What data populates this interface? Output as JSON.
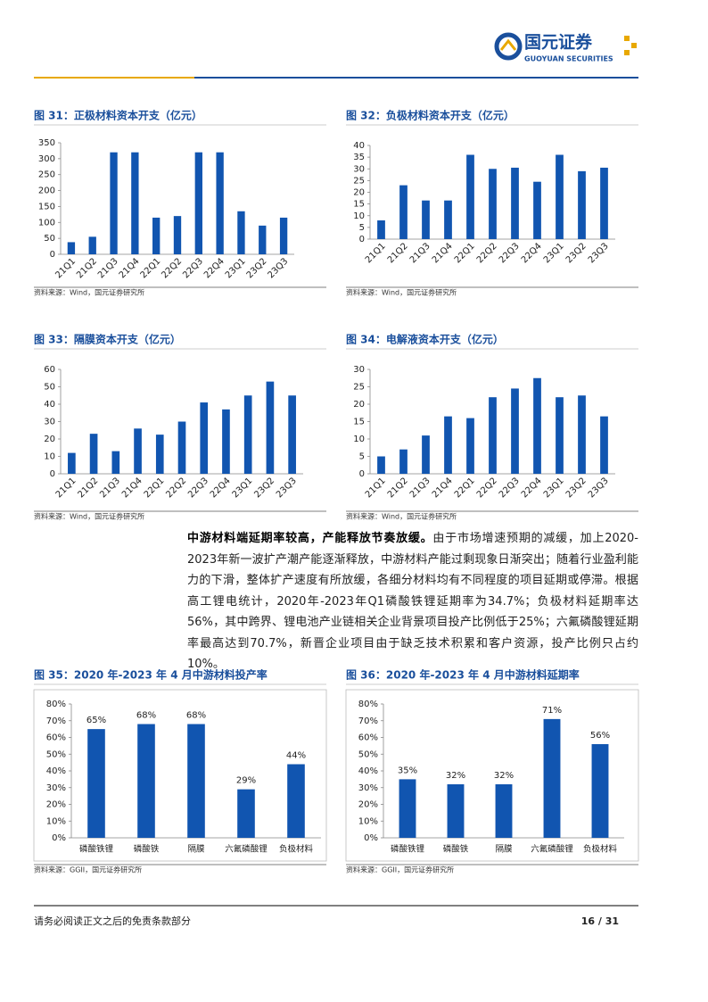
{
  "header": {
    "logo_cn": "国元证券",
    "logo_en": "GUOYUAN SECURITIES"
  },
  "chart_data": [
    {
      "type": "bar",
      "title": "图 31：正极材料资本开支（亿元）",
      "source": "资料来源：Wind，国元证券研究所",
      "categories": [
        "21Q1",
        "21Q2",
        "21Q3",
        "21Q4",
        "22Q1",
        "22Q2",
        "22Q3",
        "22Q4",
        "23Q1",
        "23Q2",
        "23Q3"
      ],
      "values": [
        38,
        55,
        320,
        320,
        115,
        120,
        320,
        320,
        135,
        90,
        115
      ],
      "color": "#1155b0",
      "ylim": [
        0,
        350
      ],
      "yticks": [
        0,
        50,
        100,
        150,
        200,
        250,
        300,
        350
      ]
    },
    {
      "type": "bar",
      "title": "图 32：负极材料资本开支（亿元）",
      "source": "资料来源：Wind，国元证券研究所",
      "categories": [
        "21Q1",
        "21Q2",
        "21Q3",
        "21Q4",
        "22Q1",
        "22Q2",
        "22Q3",
        "22Q4",
        "23Q1",
        "23Q2",
        "23Q3"
      ],
      "values": [
        8,
        23,
        16.5,
        16.5,
        36,
        30,
        30.5,
        24.5,
        36,
        29,
        30.5
      ],
      "color": "#1155b0",
      "ylim": [
        0,
        40
      ],
      "yticks": [
        0,
        5,
        10,
        15,
        20,
        25,
        30,
        35,
        40
      ]
    },
    {
      "type": "bar",
      "title": "图 33：隔膜资本开支（亿元）",
      "source": "资料来源：Wind，国元证券研究所",
      "categories": [
        "21Q1",
        "21Q2",
        "21Q3",
        "21Q4",
        "22Q1",
        "22Q2",
        "22Q3",
        "22Q4",
        "23Q1",
        "23Q2",
        "23Q3"
      ],
      "values": [
        12,
        23,
        13,
        26,
        22.5,
        30,
        41,
        37,
        45,
        53,
        45
      ],
      "color": "#1155b0",
      "ylim": [
        0,
        60
      ],
      "yticks": [
        0,
        10,
        20,
        30,
        40,
        50,
        60
      ]
    },
    {
      "type": "bar",
      "title": "图 34：电解液资本开支（亿元）",
      "source": "资料来源：Wind，国元证券研究所",
      "categories": [
        "21Q1",
        "21Q2",
        "21Q3",
        "21Q4",
        "22Q1",
        "22Q2",
        "22Q3",
        "22Q4",
        "23Q1",
        "23Q2",
        "23Q3"
      ],
      "values": [
        5,
        7,
        11,
        16.5,
        16,
        22,
        24.5,
        27.5,
        22,
        22.5,
        16.5
      ],
      "color": "#1155b0",
      "ylim": [
        0,
        30
      ],
      "yticks": [
        0,
        5,
        10,
        15,
        20,
        25,
        30
      ]
    },
    {
      "type": "bar",
      "title": "图 35：2020 年-2023 年 4 月中游材料投产率",
      "source": "资料来源：GGII，国元证券研究所",
      "categories": [
        "磷酸铁锂",
        "磷酸铁",
        "隔膜",
        "六氟磷酸锂",
        "负极材料"
      ],
      "values": [
        65,
        68,
        68,
        29,
        44
      ],
      "value_labels": [
        "65%",
        "68%",
        "68%",
        "29%",
        "44%"
      ],
      "color": "#1155b0",
      "ylim": [
        0,
        80
      ],
      "yticks": [
        {
          "value": 0,
          "label": "0%"
        },
        {
          "value": 10,
          "label": "10%"
        },
        {
          "value": 20,
          "label": "20%"
        },
        {
          "value": 30,
          "label": "30%"
        },
        {
          "value": 40,
          "label": "40%"
        },
        {
          "value": 50,
          "label": "50%"
        },
        {
          "value": 60,
          "label": "60%"
        },
        {
          "value": 70,
          "label": "70%"
        },
        {
          "value": 80,
          "label": "80%"
        }
      ]
    },
    {
      "type": "bar",
      "title": "图 36：2020 年-2023 年 4 月中游材料延期率",
      "source": "资料来源：GGII，国元证券研究所",
      "categories": [
        "磷酸铁锂",
        "磷酸铁",
        "隔膜",
        "六氟磷酸锂",
        "负极材料"
      ],
      "values": [
        35,
        32,
        32,
        71,
        56
      ],
      "value_labels": [
        "35%",
        "32%",
        "32%",
        "71%",
        "56%"
      ],
      "color": "#1155b0",
      "ylim": [
        0,
        80
      ],
      "yticks": [
        {
          "value": 0,
          "label": "0%"
        },
        {
          "value": 10,
          "label": "10%"
        },
        {
          "value": 20,
          "label": "20%"
        },
        {
          "value": 30,
          "label": "30%"
        },
        {
          "value": 40,
          "label": "40%"
        },
        {
          "value": 50,
          "label": "50%"
        },
        {
          "value": 60,
          "label": "60%"
        },
        {
          "value": 70,
          "label": "70%"
        },
        {
          "value": 80,
          "label": "80%"
        }
      ]
    }
  ],
  "paragraph": {
    "lead": "中游材料端延期率较高，产能释放节奏放缓。",
    "text": "由于市场增速预期的减缓，加上2020-2023年新一波扩产潮产能逐渐释放，中游材料产能过剩现象日渐突出；随着行业盈利能力的下滑，整体扩产速度有所放缓，各细分材料均有不同程度的项目延期或停滞。根据高工锂电统计，2020年-2023年Q1磷酸铁锂延期率为34.7%；负极材料延期率达56%，其中跨界、锂电池产业链相关企业背景项目投产比例低于25%；六氟磷酸锂延期率最高达到70.7%，新晋企业项目由于缺乏技术积累和客户资源，投产比例只占约10%。"
  },
  "footer": {
    "disclaimer": "请务必阅读正文之后的免责条款部分",
    "page": "16 / 31"
  }
}
